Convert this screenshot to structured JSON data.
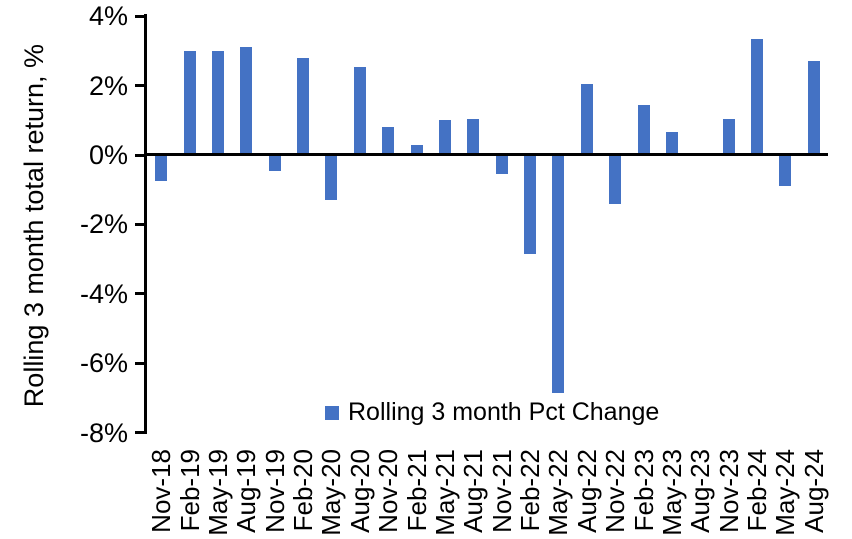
{
  "colors": {
    "bar": "#4472C4",
    "axis": "#000000",
    "text": "#000000",
    "background": "#FFFFFF"
  },
  "y_axis": {
    "title": "Rolling 3 month total return, %",
    "tick_labels": [
      "4%",
      "2%",
      "0%",
      "-2%",
      "-4%",
      "-6%",
      "-8%"
    ]
  },
  "legend": {
    "label": "Rolling 3 month Pct Change"
  },
  "chart_data": {
    "type": "bar",
    "title": "",
    "xlabel": "",
    "ylabel": "Rolling 3 month total return, %",
    "ylim": [
      -8,
      4
    ],
    "ytick_step": 2,
    "grid": false,
    "legend_position": "inside-bottom-center",
    "bar_color": "#4472C4",
    "series_name": "Rolling 3 month Pct Change",
    "categories": [
      "Nov-18",
      "Feb-19",
      "May-19",
      "Aug-19",
      "Nov-19",
      "Feb-20",
      "May-20",
      "Aug-20",
      "Nov-20",
      "Feb-21",
      "May-21",
      "Aug-21",
      "Nov-21",
      "Feb-22",
      "May-22",
      "Aug-22",
      "Nov-22",
      "Feb-23",
      "May-23",
      "Aug-23",
      "Nov-23",
      "Feb-24",
      "May-24",
      "Aug-24"
    ],
    "values": [
      -0.75,
      3.0,
      3.0,
      3.1,
      -0.45,
      2.8,
      -1.3,
      2.55,
      0.8,
      0.3,
      1.0,
      1.05,
      -0.55,
      -2.85,
      -6.85,
      2.05,
      -1.4,
      1.45,
      0.65,
      0.0,
      1.05,
      3.35,
      -0.9,
      2.7
    ]
  }
}
